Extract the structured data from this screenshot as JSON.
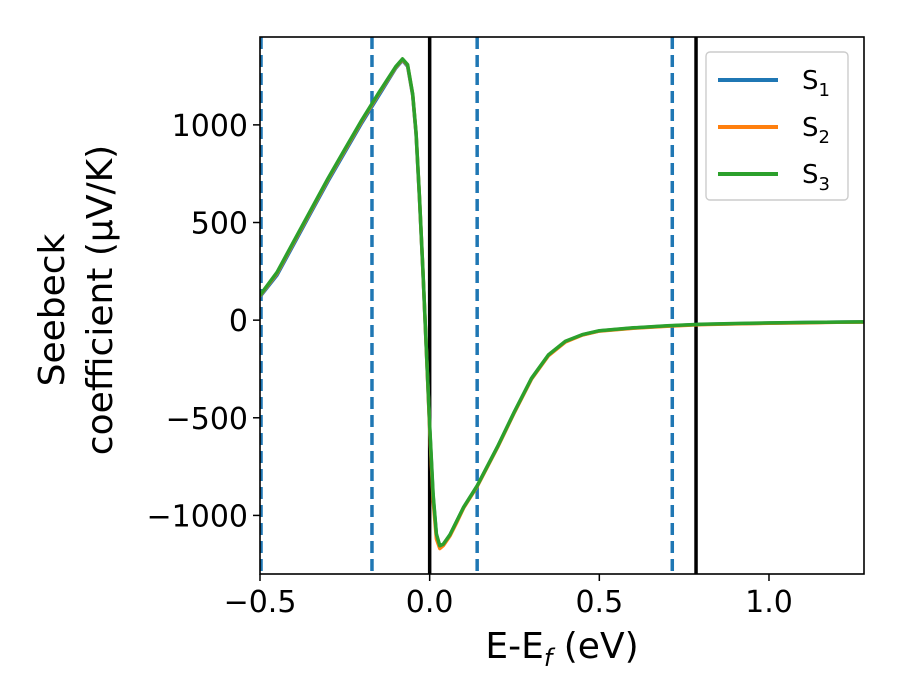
{
  "chart_data": {
    "type": "line",
    "xlabel": "E-E",
    "xlabel_sub": "f",
    "xlabel_unit": " (eV)",
    "ylabel_line1": "Seebeck",
    "ylabel_line2": "coefficient  (μV/K)",
    "xlim": [
      -0.5,
      1.28
    ],
    "ylim": [
      -1300,
      1450
    ],
    "xticks": [
      -0.5,
      0.0,
      0.5,
      1.0
    ],
    "xtick_labels": [
      "−0.5",
      "0.0",
      "0.5",
      "1.0"
    ],
    "yticks": [
      -1000,
      -500,
      0,
      500,
      1000
    ],
    "ytick_labels": [
      "−1000",
      "−500",
      "0",
      "500",
      "1000"
    ],
    "vlines_dashed": [
      -0.497,
      -0.17,
      0.14,
      0.715
    ],
    "vlines_solid": [
      0.0,
      0.785
    ],
    "vline_dashed_color": "#1f77b4",
    "vline_solid_color": "#000000",
    "legend_position": "top-right",
    "series": [
      {
        "name": "S",
        "name_sub": "1",
        "color": "#1f77b4",
        "x": [
          -0.5,
          -0.45,
          -0.4,
          -0.35,
          -0.3,
          -0.25,
          -0.2,
          -0.15,
          -0.1,
          -0.08,
          -0.065,
          -0.05,
          -0.04,
          -0.03,
          -0.02,
          -0.01,
          0.0,
          0.01,
          0.02,
          0.03,
          0.04,
          0.06,
          0.08,
          0.1,
          0.14,
          0.2,
          0.25,
          0.3,
          0.35,
          0.4,
          0.45,
          0.5,
          0.6,
          0.7,
          0.8,
          0.9,
          1.0,
          1.1,
          1.2,
          1.28
        ],
        "y": [
          120,
          230,
          390,
          550,
          710,
          860,
          1010,
          1150,
          1290,
          1330,
          1300,
          1150,
          950,
          620,
          250,
          -150,
          -550,
          -900,
          -1100,
          -1160,
          -1150,
          -1100,
          -1030,
          -960,
          -850,
          -650,
          -470,
          -300,
          -180,
          -110,
          -75,
          -55,
          -40,
          -30,
          -22,
          -18,
          -15,
          -12,
          -10,
          -9
        ]
      },
      {
        "name": "S",
        "name_sub": "2",
        "color": "#ff7f0e",
        "x": [
          -0.5,
          -0.45,
          -0.4,
          -0.35,
          -0.3,
          -0.25,
          -0.2,
          -0.15,
          -0.1,
          -0.08,
          -0.065,
          -0.05,
          -0.04,
          -0.03,
          -0.02,
          -0.01,
          0.0,
          0.01,
          0.02,
          0.03,
          0.04,
          0.06,
          0.08,
          0.1,
          0.14,
          0.2,
          0.25,
          0.3,
          0.35,
          0.4,
          0.45,
          0.5,
          0.6,
          0.7,
          0.8,
          0.9,
          1.0,
          1.1,
          1.2,
          1.28
        ],
        "y": [
          125,
          240,
          400,
          560,
          720,
          870,
          1020,
          1160,
          1295,
          1335,
          1305,
          1155,
          955,
          625,
          255,
          -145,
          -560,
          -920,
          -1120,
          -1170,
          -1155,
          -1105,
          -1035,
          -962,
          -852,
          -652,
          -472,
          -302,
          -182,
          -112,
          -76,
          -56,
          -41,
          -31,
          -23,
          -19,
          -16,
          -14,
          -11,
          -10
        ]
      },
      {
        "name": "S",
        "name_sub": "3",
        "color": "#2ca02c",
        "x": [
          -0.5,
          -0.45,
          -0.4,
          -0.35,
          -0.3,
          -0.25,
          -0.2,
          -0.15,
          -0.1,
          -0.08,
          -0.065,
          -0.05,
          -0.04,
          -0.03,
          -0.02,
          -0.01,
          0.0,
          0.01,
          0.02,
          0.03,
          0.04,
          0.06,
          0.08,
          0.1,
          0.14,
          0.2,
          0.25,
          0.3,
          0.35,
          0.4,
          0.45,
          0.5,
          0.6,
          0.7,
          0.8,
          0.9,
          1.0,
          1.1,
          1.2,
          1.28
        ],
        "y": [
          128,
          245,
          405,
          565,
          725,
          875,
          1025,
          1165,
          1298,
          1338,
          1308,
          1158,
          958,
          628,
          258,
          -140,
          -540,
          -890,
          -1095,
          -1155,
          -1148,
          -1098,
          -1028,
          -958,
          -848,
          -648,
          -468,
          -298,
          -178,
          -108,
          -74,
          -54,
          -39,
          -29,
          -21,
          -17,
          -14,
          -12,
          -10,
          -9
        ]
      }
    ]
  }
}
